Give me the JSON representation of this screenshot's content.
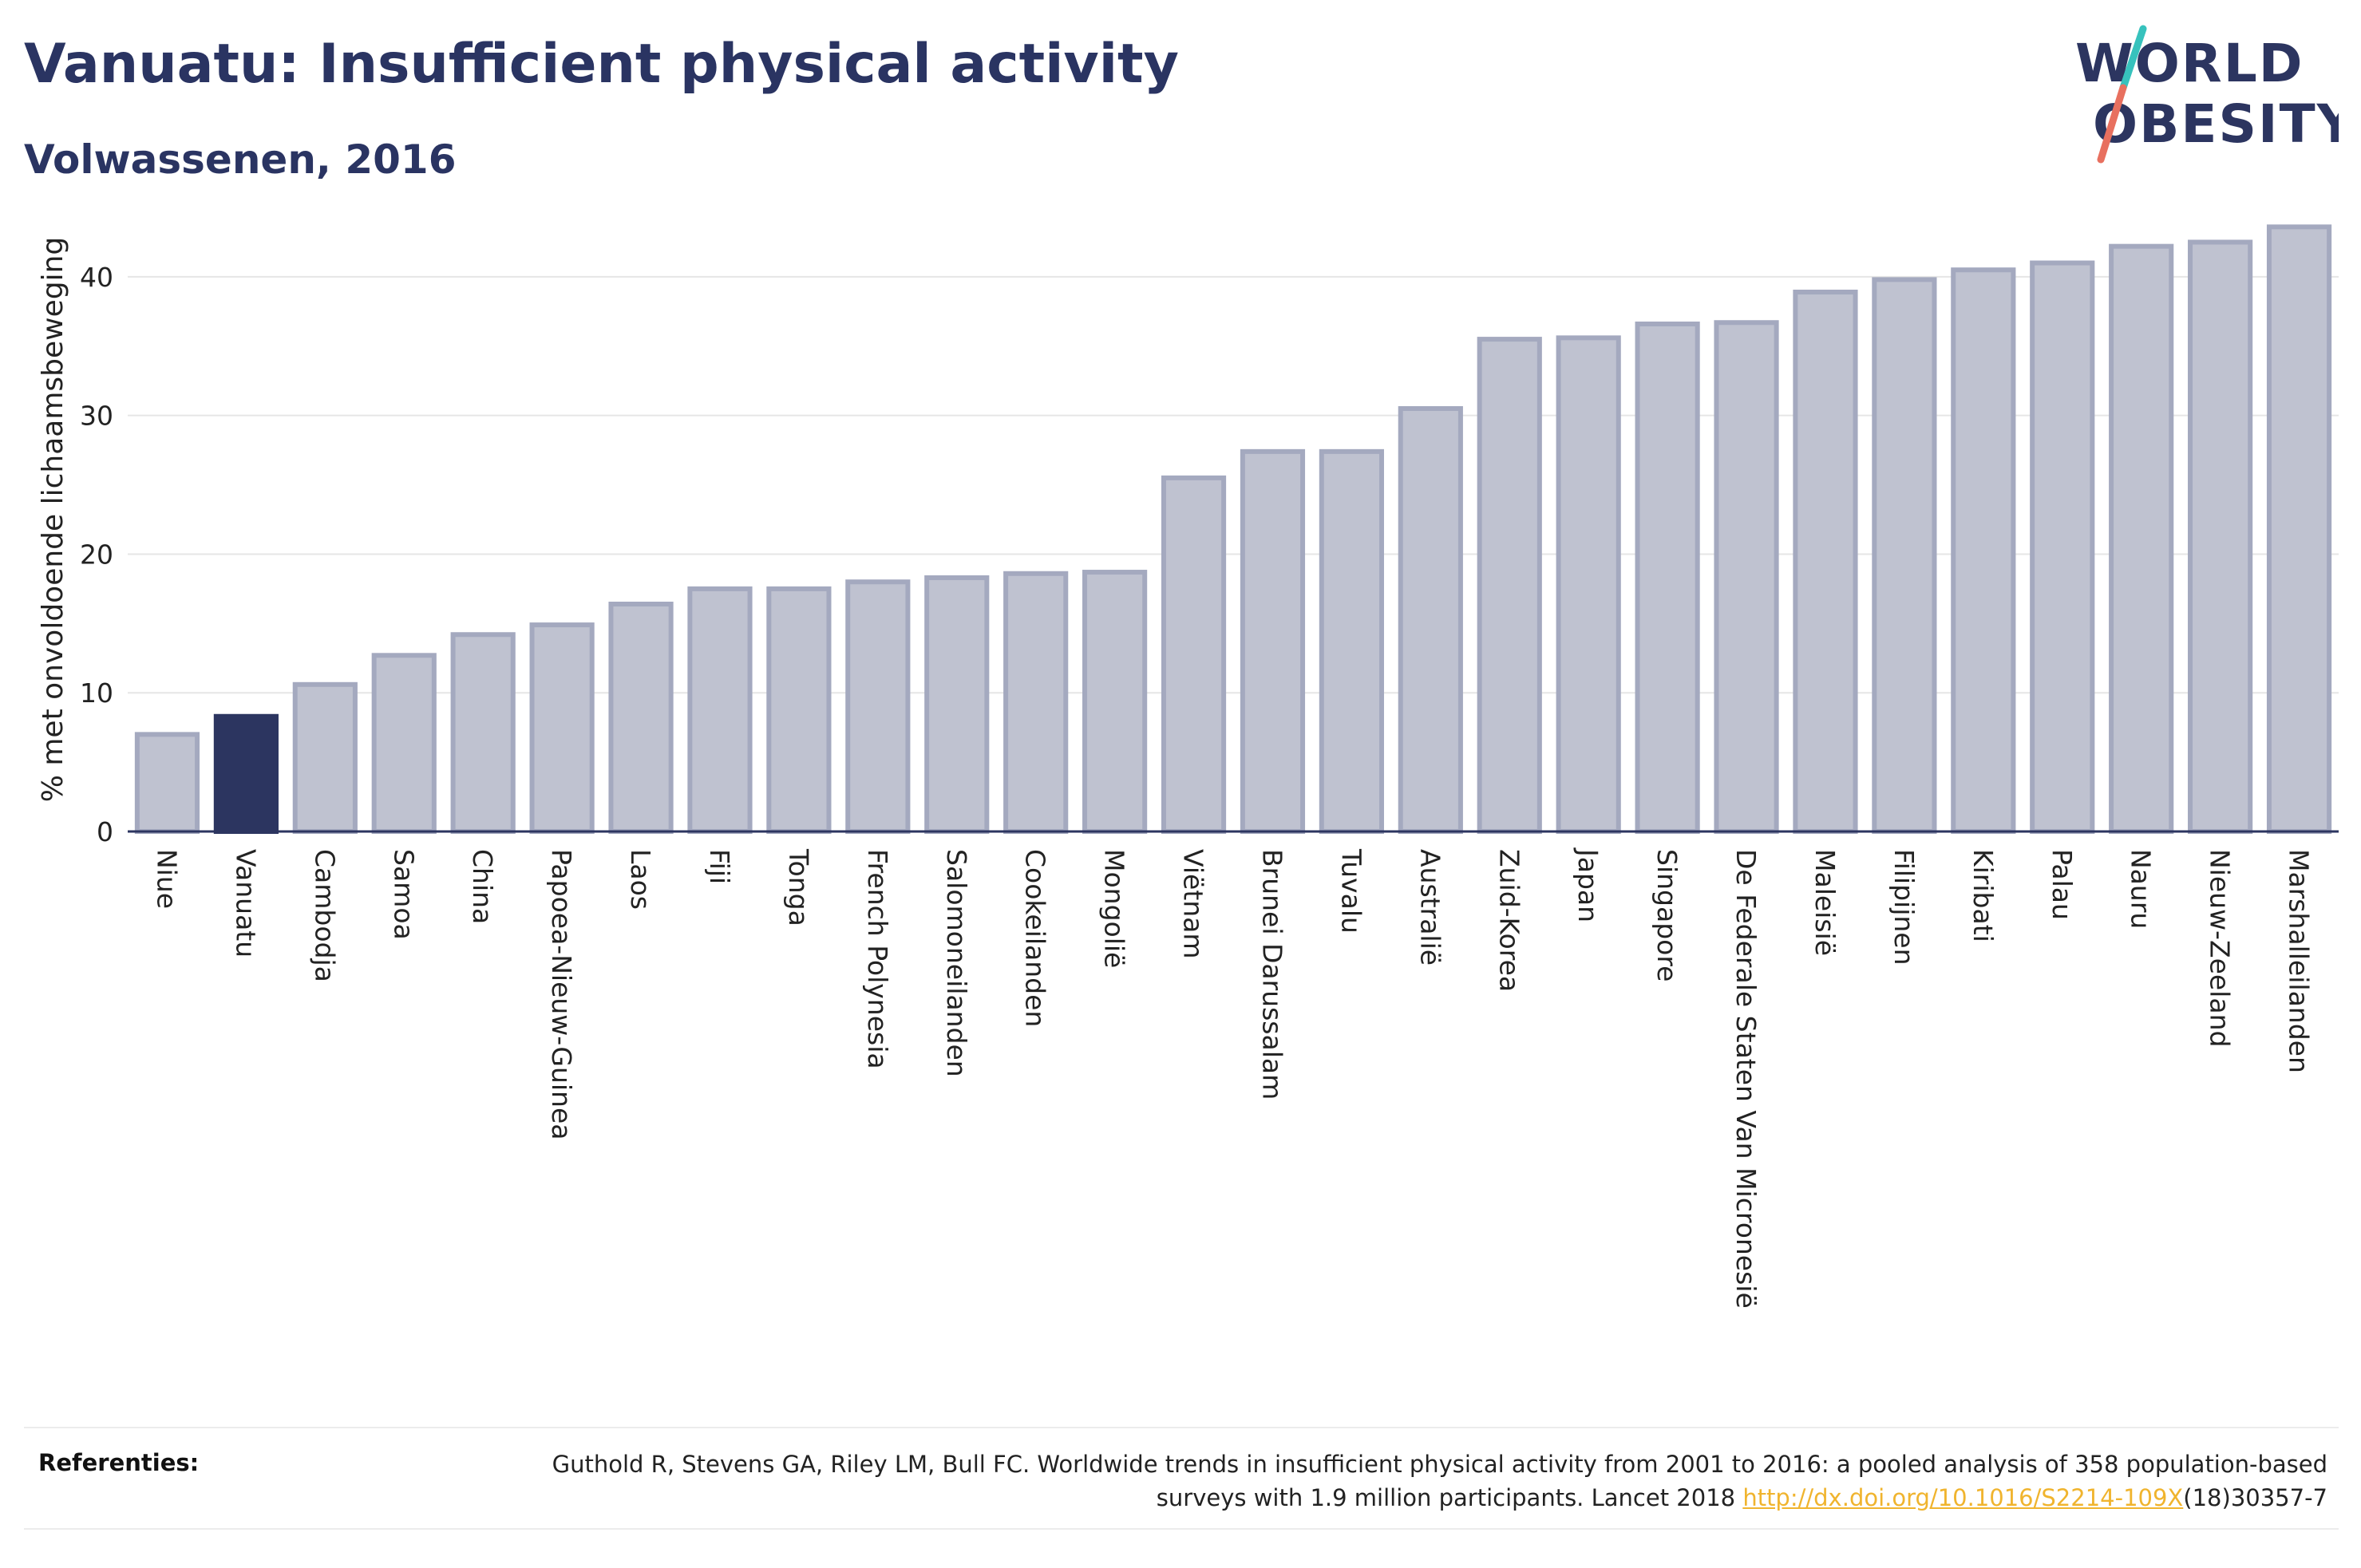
{
  "header": {
    "title": "Vanuatu: Insufficient physical activity",
    "subtitle": "Volwassenen, 2016"
  },
  "logo": {
    "line1": "WORLD",
    "line2": "OBESITY",
    "colors": {
      "text": "#2c3560",
      "slash_top": "#37c2bd",
      "slash_bottom": "#e8705f"
    }
  },
  "chart_data": {
    "type": "bar",
    "ylabel": "% met onvoldoende lichaamsbeweging",
    "xlabel": "",
    "ylim": [
      0,
      45
    ],
    "yticks": [
      0,
      10,
      20,
      30,
      40
    ],
    "grid": true,
    "highlight": "Vanuatu",
    "colors": {
      "bar": "#bfc2d0",
      "bar_edge": "#a4a9bf",
      "highlight": "#2c3560"
    },
    "categories": [
      "Niue",
      "Vanuatu",
      "Cambodja",
      "Samoa",
      "China",
      "Papoea-Nieuw-Guinea",
      "Laos",
      "Fiji",
      "Tonga",
      "French Polynesia",
      "Salomoneilanden",
      "Cookeilanden",
      "Mongolië",
      "Viëtnam",
      "Brunei Darussalam",
      "Tuvalu",
      "Australië",
      "Zuid-Korea",
      "Japan",
      "Singapore",
      "De Federale Staten Van Micronesië",
      "Maleisië",
      "Filipijnen",
      "Kiribati",
      "Palau",
      "Nauru",
      "Nieuw-Zeeland",
      "Marshalleilanden"
    ],
    "values": [
      7.0,
      8.3,
      10.6,
      12.7,
      14.2,
      14.9,
      16.4,
      17.5,
      17.5,
      18.0,
      18.3,
      18.6,
      18.7,
      25.5,
      27.4,
      27.4,
      30.5,
      35.5,
      35.6,
      36.6,
      36.7,
      38.9,
      39.8,
      40.5,
      41.0,
      42.2,
      42.5,
      43.6
    ]
  },
  "footer": {
    "references_label": "Referenties:",
    "reference_text_1": "Guthold R, Stevens GA, Riley LM, Bull FC. Worldwide trends in insufficient physical activity from 2001 to 2016: a pooled analysis of 358 population-based surveys with 1.9 million participants. Lancet 2018 ",
    "reference_link": "http://dx.doi.org/10.1016/S2214-109X",
    "reference_text_2": "(18)30357-7"
  }
}
